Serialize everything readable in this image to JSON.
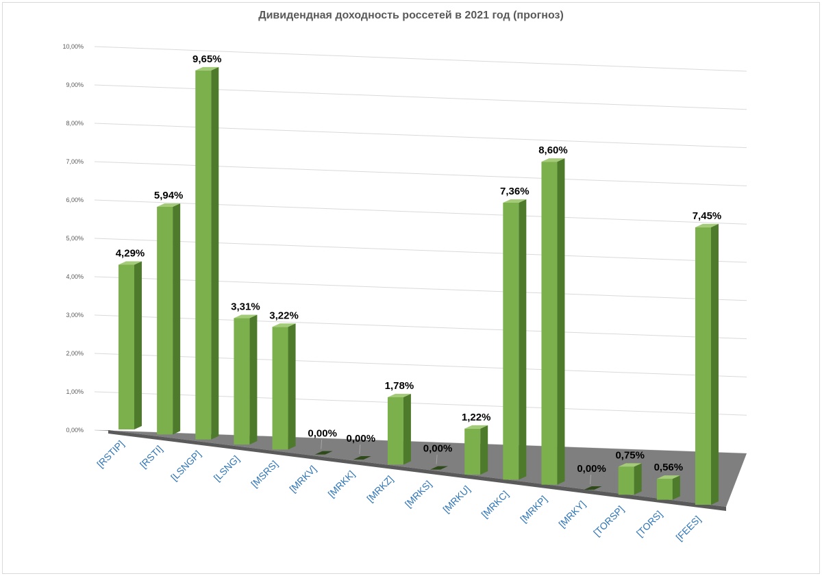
{
  "chart_data": {
    "type": "bar",
    "title": "Дивидендная доходность россетей в 2021 год (прогноз)",
    "xlabel": "",
    "ylabel": "",
    "categories": [
      "[RSTIP]",
      "[RSTI]",
      "[LSNGP]",
      "[LSNG]",
      "[MSRS]",
      "[MRKV]",
      "[MRKK]",
      "[MRKZ]",
      "[MRKS]",
      "[MRKU]",
      "[MRKC]",
      "[MRKP]",
      "[MRKY]",
      "[TORSP]",
      "[TORS]",
      "[FEES]"
    ],
    "values": [
      4.29,
      5.94,
      9.65,
      3.31,
      3.22,
      0.0,
      0.0,
      1.78,
      0.0,
      1.22,
      7.36,
      8.6,
      0.0,
      0.75,
      0.56,
      7.45
    ],
    "data_labels": [
      "4,29%",
      "5,94%",
      "9,65%",
      "3,31%",
      "3,22%",
      "0,00%",
      "0,00%",
      "1,78%",
      "0,00%",
      "1,22%",
      "7,36%",
      "8,60%",
      "0,00%",
      "0,75%",
      "0,56%",
      "7,45%"
    ],
    "yticks": [
      "0,00%",
      "1,00%",
      "2,00%",
      "3,00%",
      "4,00%",
      "5,00%",
      "6,00%",
      "7,00%",
      "8,00%",
      "9,00%",
      "10,00%"
    ],
    "ylim": [
      0,
      10
    ],
    "grid": true,
    "legend": "none",
    "style": "3d-column",
    "colors": {
      "bar_front": "#7bb04c",
      "bar_side": "#4e7a2c",
      "bar_top": "#a4cc78",
      "floor": "#7f7f7f",
      "floor_edge": "#5a5a5a",
      "grid": "#d9d9d9",
      "category_label": "#2e75b6",
      "value_label": "#000000"
    }
  }
}
